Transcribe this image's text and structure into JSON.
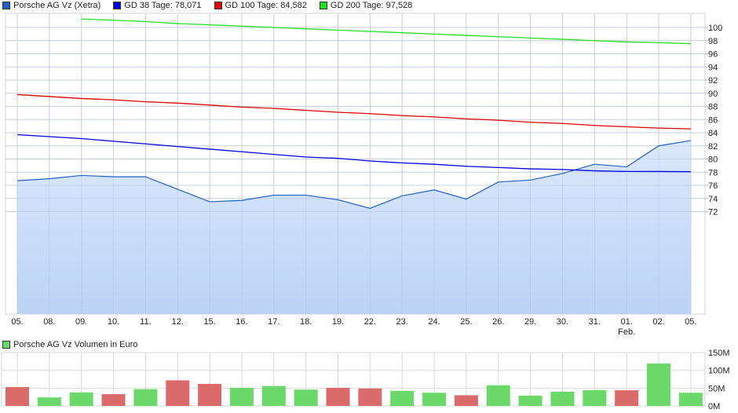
{
  "legend": [
    {
      "label": "Porsche AG Vz (Xetra)",
      "color": "#2060c0"
    },
    {
      "label": "GD 38 Tage: 78,071",
      "color": "#0000e0"
    },
    {
      "label": "GD 100 Tage: 84,582",
      "color": "#e00000"
    },
    {
      "label": "GD 200 Tage: 97,528",
      "color": "#20e020"
    }
  ],
  "volume_legend": {
    "label": "Porsche AG Vz Volumen in Euro",
    "color": "#6ad96a"
  },
  "chart_data": [
    {
      "type": "line",
      "title": "Porsche AG Vz (Xetra)",
      "categories": [
        "05.",
        "08.",
        "09.",
        "10.",
        "11.",
        "12.",
        "15.",
        "16.",
        "17.",
        "18.",
        "19.",
        "22.",
        "23.",
        "24.",
        "25.",
        "26.",
        "29.",
        "30.",
        "31.",
        "01.",
        "02.",
        "05."
      ],
      "category_sublabels": {
        "19": "Feb."
      },
      "ylim": [
        70,
        102
      ],
      "yticks": [
        72,
        74,
        76,
        78,
        80,
        82,
        84,
        86,
        88,
        90,
        92,
        94,
        96,
        98,
        100
      ],
      "grid": true,
      "axis_position": "right",
      "series": [
        {
          "name": "Porsche AG Vz (Xetra)",
          "style": "area",
          "color": "#2060c0",
          "values": [
            76.7,
            77.0,
            77.5,
            77.3,
            77.3,
            75.4,
            73.5,
            73.7,
            74.5,
            74.5,
            73.8,
            72.5,
            74.4,
            75.3,
            73.9,
            76.5,
            76.8,
            77.8,
            79.2,
            78.8,
            82.0,
            82.8
          ]
        },
        {
          "name": "GD 38 Tage",
          "color": "#0000e0",
          "values": [
            83.7,
            83.4,
            83.1,
            82.7,
            82.3,
            81.9,
            81.5,
            81.1,
            80.7,
            80.3,
            80.1,
            79.7,
            79.4,
            79.2,
            78.9,
            78.7,
            78.5,
            78.4,
            78.2,
            78.1,
            78.1,
            78.07
          ]
        },
        {
          "name": "GD 100 Tage",
          "color": "#e00000",
          "values": [
            89.8,
            89.5,
            89.2,
            89.0,
            88.7,
            88.5,
            88.2,
            87.9,
            87.7,
            87.4,
            87.1,
            86.9,
            86.6,
            86.4,
            86.1,
            85.9,
            85.6,
            85.4,
            85.1,
            84.9,
            84.7,
            84.58
          ]
        },
        {
          "name": "GD 200 Tage",
          "color": "#20e020",
          "values": [
            null,
            null,
            101.3,
            101.1,
            100.9,
            100.6,
            100.4,
            100.2,
            100.0,
            99.8,
            99.6,
            99.4,
            99.2,
            99.0,
            98.8,
            98.6,
            98.4,
            98.2,
            98.0,
            97.8,
            97.7,
            97.53
          ]
        }
      ]
    },
    {
      "type": "bar",
      "title": "Porsche AG Vz Volumen in Euro",
      "categories": [
        "05.",
        "08.",
        "09.",
        "10.",
        "11.",
        "12.",
        "15.",
        "16.",
        "17.",
        "18.",
        "19.",
        "22.",
        "23.",
        "24.",
        "25.",
        "26.",
        "29.",
        "30.",
        "31.",
        "01.",
        "02.",
        "05."
      ],
      "ylim": [
        0,
        150
      ],
      "yticks": [
        "0M",
        "50M",
        "100M",
        "150M"
      ],
      "ytick_values": [
        0,
        50,
        100,
        150
      ],
      "values": [
        53,
        24,
        38,
        33,
        47,
        72,
        62,
        51,
        56,
        46,
        51,
        49,
        42,
        37,
        30,
        58,
        29,
        40,
        44,
        44,
        119,
        37
      ],
      "colors": [
        "red",
        "green",
        "green",
        "red",
        "green",
        "red",
        "red",
        "green",
        "green",
        "green",
        "red",
        "red",
        "green",
        "green",
        "red",
        "green",
        "green",
        "green",
        "green",
        "red",
        "green",
        "green"
      ],
      "up_color": "#6ad96a",
      "down_color": "#db6a6a"
    }
  ]
}
